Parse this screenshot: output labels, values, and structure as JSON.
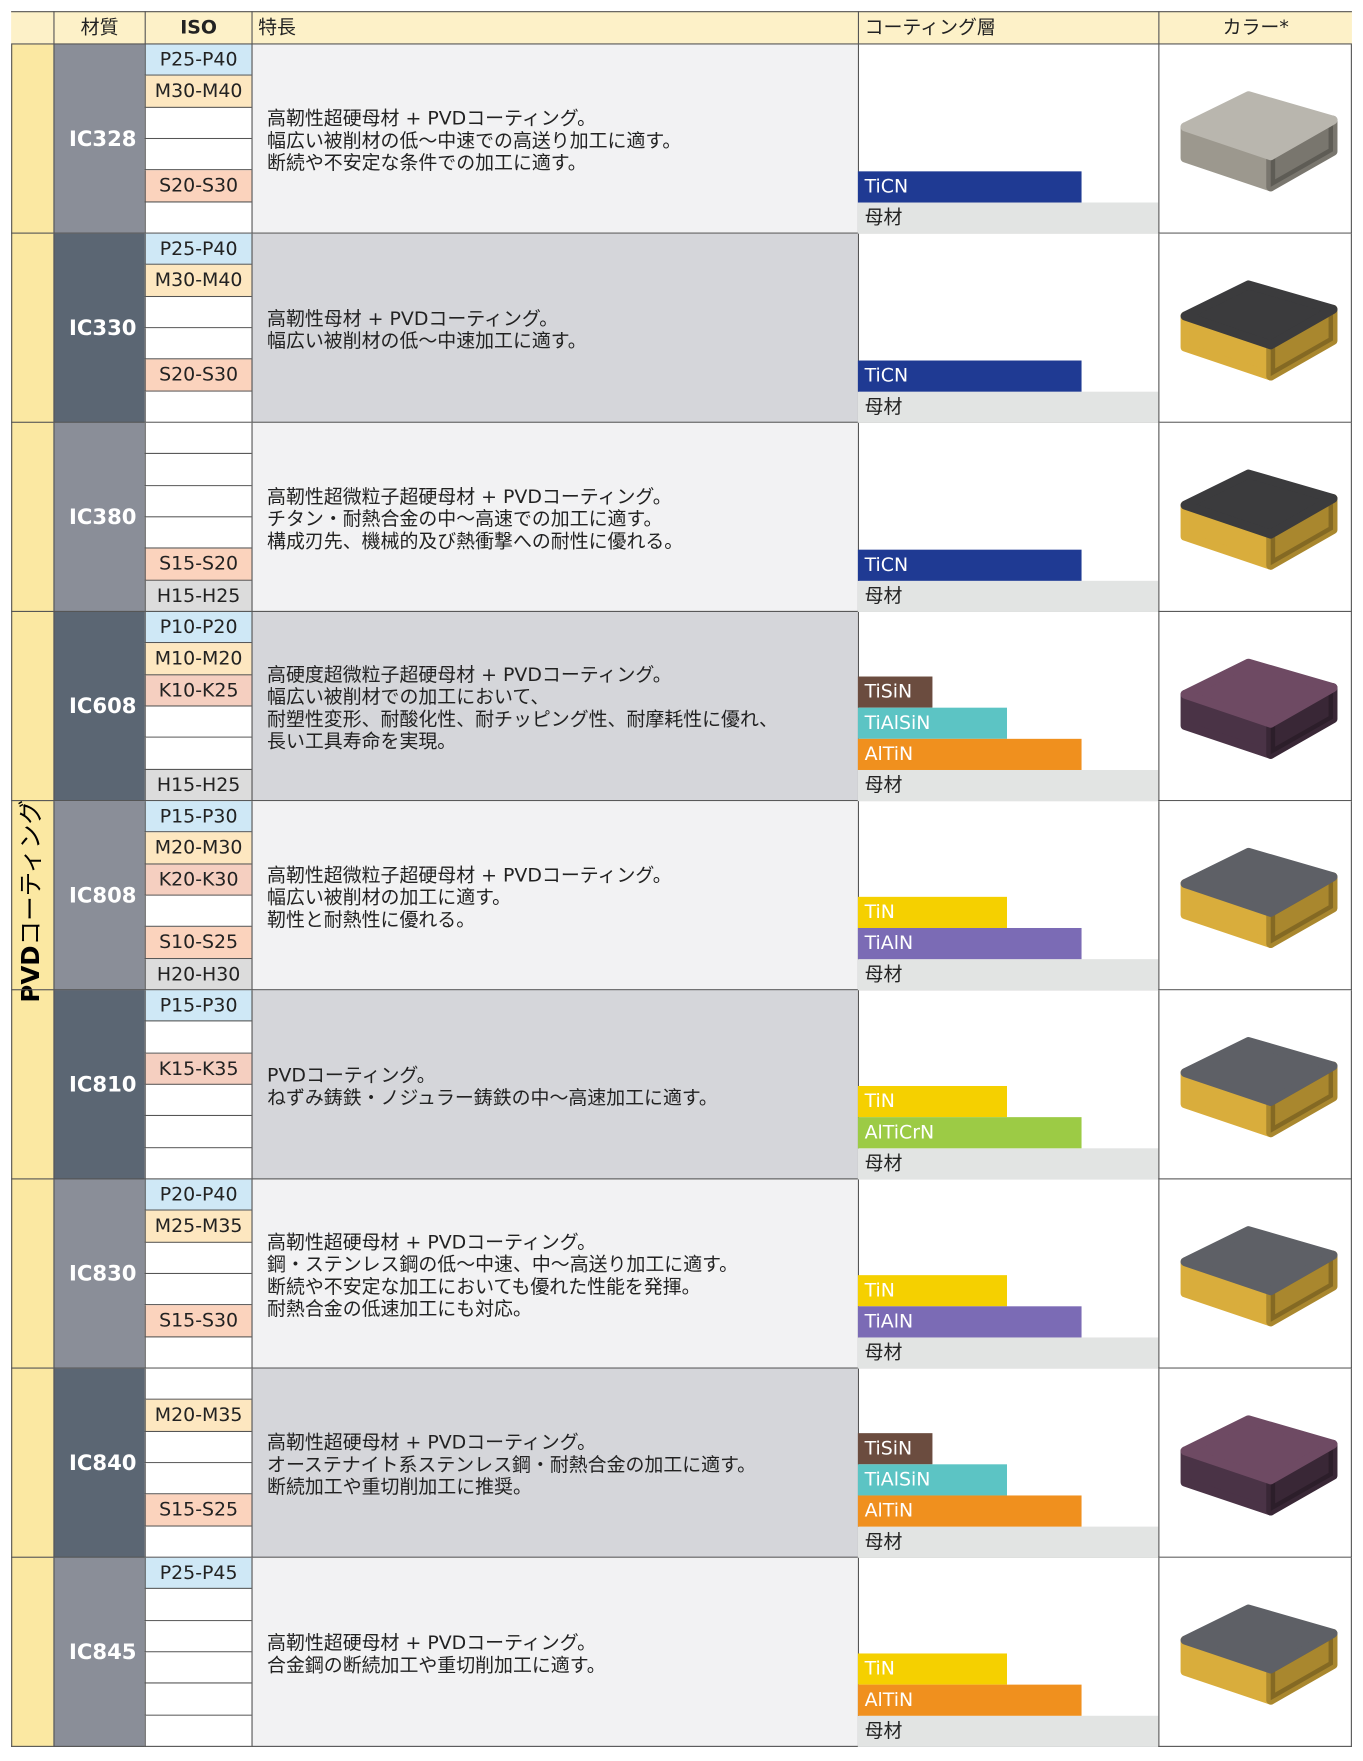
{
  "header": {
    "columns": [
      "材質",
      "ISO",
      "特長",
      "コーティング層",
      "カラー*"
    ]
  },
  "group_label": {
    "bold": "PVD",
    "rest": "コーティング"
  },
  "iso_colors": [
    "#cfe8f6",
    "#fde7c0",
    "#f5cfc0",
    "#ffffff",
    "#fbd3bd",
    "#dcdcdc"
  ],
  "base_color": "#e2e4e3",
  "grades": [
    {
      "name": "IC328",
      "iso": [
        "P25-P40",
        "M30-M40",
        null,
        null,
        "S20-S30",
        null
      ],
      "features": [
        "高靭性超硬母材 + PVDコーティング。",
        "幅広い被削材の低～中速での高送り加工に適す。",
        "断続や不安定な条件での加工に適す。"
      ],
      "layers": [
        {
          "name": "TiCN",
          "color": "#1f3a93"
        }
      ],
      "base": "母材",
      "insert": {
        "top": "#b9b6ae",
        "side": "#9c988e"
      }
    },
    {
      "name": "IC330",
      "iso": [
        "P25-P40",
        "M30-M40",
        null,
        null,
        "S20-S30",
        null
      ],
      "features": [
        "高靭性母材 + PVDコーティング。",
        "幅広い被削材の低～中速加工に適す。"
      ],
      "layers": [
        {
          "name": "TiCN",
          "color": "#1f3a93"
        }
      ],
      "base": "母材",
      "insert": {
        "top": "#3b3b3d",
        "side": "#d9ad3c"
      }
    },
    {
      "name": "IC380",
      "iso": [
        null,
        null,
        null,
        null,
        "S15-S20",
        "H15-H25"
      ],
      "features": [
        "高靭性超微粒子超硬母材 + PVDコーティング。",
        "チタン・耐熱合金の中～高速での加工に適す。",
        "構成刃先、機械的及び熱衝撃への耐性に優れる。"
      ],
      "layers": [
        {
          "name": "TiCN",
          "color": "#1f3a93"
        }
      ],
      "base": "母材",
      "insert": {
        "top": "#3b3b3d",
        "side": "#d9ad3c"
      }
    },
    {
      "name": "IC608",
      "iso": [
        "P10-P20",
        "M10-M20",
        "K10-K25",
        null,
        null,
        "H15-H25"
      ],
      "features": [
        "高硬度超微粒子超硬母材 + PVDコーティング。",
        "幅広い被削材での加工において、",
        "耐塑性変形、耐酸化性、耐チッピング性、耐摩耗性に優れ、",
        "長い工具寿命を実現。"
      ],
      "layers": [
        {
          "name": "TiSiN",
          "color": "#6b4c3f"
        },
        {
          "name": "TiAlSiN",
          "color": "#5cc4c4"
        },
        {
          "name": "AlTiN",
          "color": "#f0901e"
        }
      ],
      "base": "母材",
      "insert": {
        "top": "#6e4a63",
        "side": "#4a3346"
      }
    },
    {
      "name": "IC808",
      "iso": [
        "P15-P30",
        "M20-M30",
        "K20-K30",
        null,
        "S10-S25",
        "H20-H30"
      ],
      "features": [
        "高靭性超微粒子超硬母材 + PVDコーティング。",
        "幅広い被削材の加工に適す。",
        "靭性と耐熱性に優れる。"
      ],
      "layers": [
        {
          "name": "TiN",
          "color": "#f5d000"
        },
        {
          "name": "TiAlN",
          "color": "#7b6bb5"
        }
      ],
      "base": "母材",
      "insert": {
        "top": "#5e6066",
        "side": "#d9ad3c"
      }
    },
    {
      "name": "IC810",
      "iso": [
        "P15-P30",
        null,
        "K15-K35",
        null,
        null,
        null
      ],
      "features": [
        "PVDコーティング。",
        "ねずみ鋳鉄・ノジュラー鋳鉄の中～高速加工に適す。"
      ],
      "layers": [
        {
          "name": "TiN",
          "color": "#f5d000"
        },
        {
          "name": "AlTiCrN",
          "color": "#9ccb45"
        }
      ],
      "base": "母材",
      "insert": {
        "top": "#5e6066",
        "side": "#d9ad3c"
      }
    },
    {
      "name": "IC830",
      "iso": [
        "P20-P40",
        "M25-M35",
        null,
        null,
        "S15-S30",
        null
      ],
      "features": [
        "高靭性超硬母材 + PVDコーティング。",
        "鋼・ステンレス鋼の低～中速、中～高送り加工に適す。",
        "断続や不安定な加工においても優れた性能を発揮。",
        "耐熱合金の低速加工にも対応。"
      ],
      "layers": [
        {
          "name": "TiN",
          "color": "#f5d000"
        },
        {
          "name": "TiAlN",
          "color": "#7b6bb5"
        }
      ],
      "base": "母材",
      "insert": {
        "top": "#5e6066",
        "side": "#d9ad3c"
      }
    },
    {
      "name": "IC840",
      "iso": [
        null,
        "M20-M35",
        null,
        null,
        "S15-S25",
        null
      ],
      "features": [
        "高靭性超硬母材 + PVDコーティング。",
        "オーステナイト系ステンレス鋼・耐熱合金の加工に適す。",
        "断続加工や重切削加工に推奨。"
      ],
      "layers": [
        {
          "name": "TiSiN",
          "color": "#6b4c3f"
        },
        {
          "name": "TiAlSiN",
          "color": "#5cc4c4"
        },
        {
          "name": "AlTiN",
          "color": "#f0901e"
        }
      ],
      "base": "母材",
      "insert": {
        "top": "#6e4a63",
        "side": "#4a3346"
      }
    },
    {
      "name": "IC845",
      "iso": [
        "P25-P45",
        null,
        null,
        null,
        null,
        null
      ],
      "features": [
        "高靭性超硬母材 + PVDコーティング。",
        "合金鋼の断続加工や重切削加工に適す。"
      ],
      "layers": [
        {
          "name": "TiN",
          "color": "#f5d000"
        },
        {
          "name": "AlTiN",
          "color": "#f0901e"
        }
      ],
      "base": "母材",
      "insert": {
        "top": "#5e6066",
        "side": "#d9ad3c"
      }
    }
  ]
}
